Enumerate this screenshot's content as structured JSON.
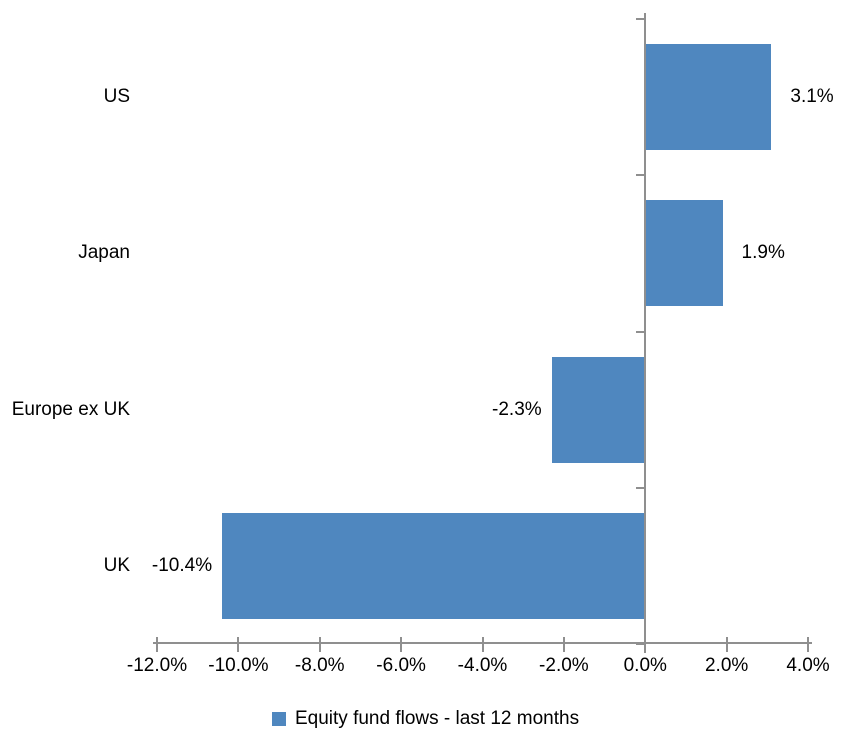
{
  "chart_data": {
    "type": "bar",
    "orientation": "horizontal",
    "title": "",
    "categories": [
      "US",
      "Japan",
      "Europe ex UK",
      "UK"
    ],
    "series": [
      {
        "name": "Equity fund flows - last 12 months",
        "values": [
          3.1,
          1.9,
          -2.3,
          -10.4
        ],
        "labels": [
          "3.1%",
          "1.9%",
          "-2.3%",
          "-10.4%"
        ],
        "color": "#4f87bf"
      }
    ],
    "x_axis": {
      "min": -12,
      "max": 4,
      "tick_step": 2,
      "tick_values": [
        -12,
        -10,
        -8,
        -6,
        -4,
        -2,
        0,
        2,
        4
      ],
      "tick_labels": [
        "-12.0%",
        "-10.0%",
        "-8.0%",
        "-6.0%",
        "-4.0%",
        "-2.0%",
        "0.0%",
        "2.0%",
        "4.0%"
      ]
    },
    "legend": {
      "position": "bottom",
      "label": "Equity fund flows - last 12 months",
      "swatch_color": "#4f87bf"
    },
    "style": {
      "axis_color": "#8f8f8f",
      "text_color": "#000000",
      "background": "#ffffff",
      "grid": false
    }
  }
}
